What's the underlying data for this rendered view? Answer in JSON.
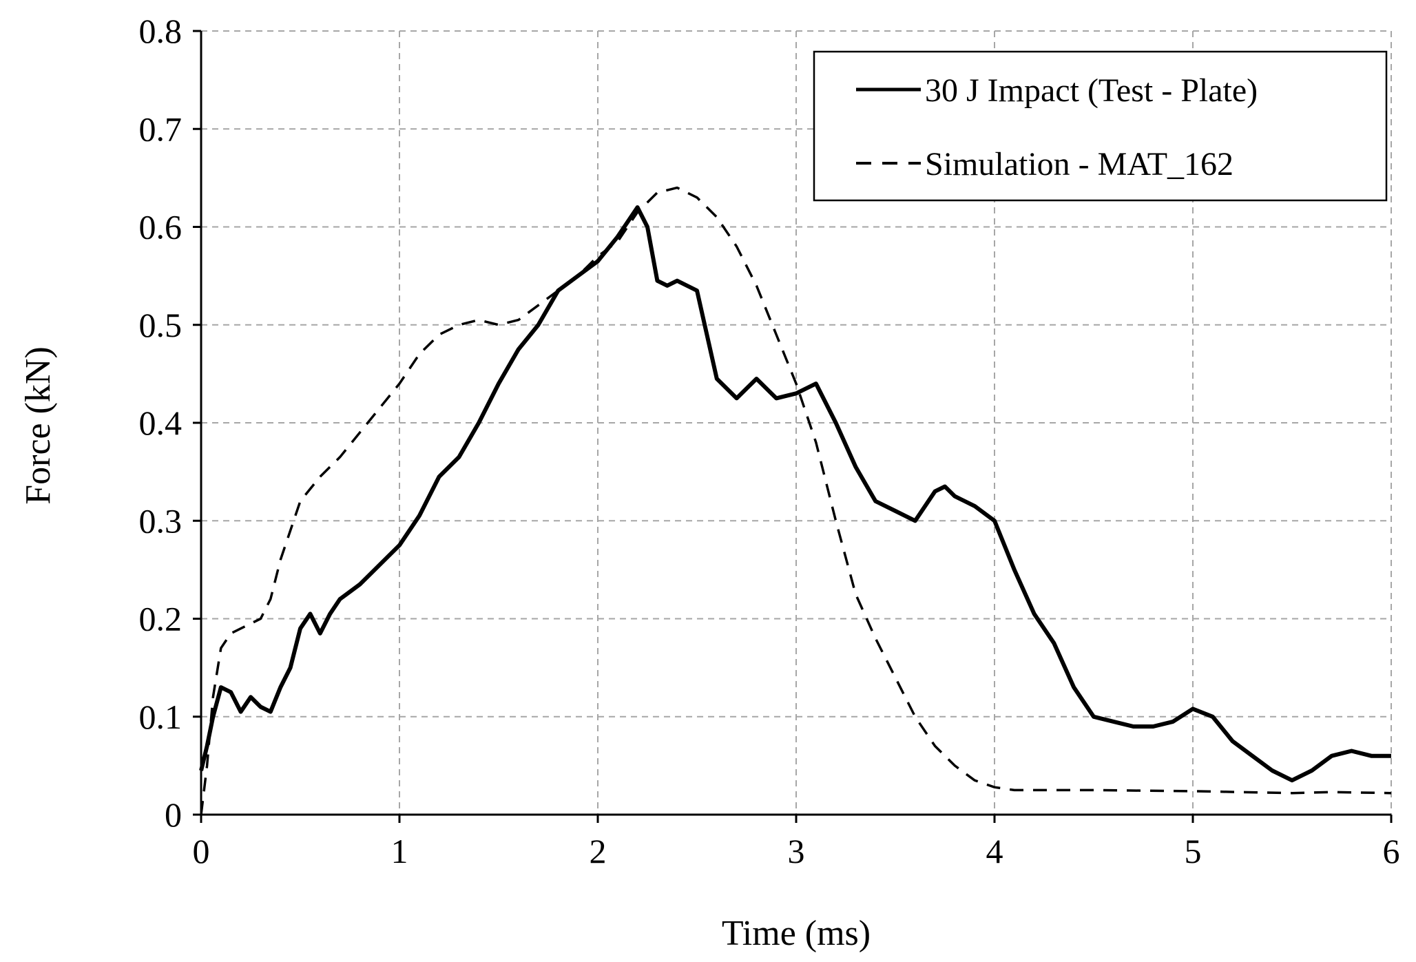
{
  "chart_data": {
    "type": "line",
    "title": "",
    "xlabel": "Time (ms)",
    "ylabel": "Force (kN)",
    "xlim": [
      0,
      6
    ],
    "ylim": [
      0,
      0.8
    ],
    "xticks": [
      0,
      1,
      2,
      3,
      4,
      5,
      6
    ],
    "yticks": [
      0,
      0.1,
      0.2,
      0.3,
      0.4,
      0.5,
      0.6,
      0.7,
      0.8
    ],
    "xtick_labels": [
      "0",
      "1",
      "2",
      "3",
      "4",
      "5",
      "6"
    ],
    "ytick_labels": [
      "0",
      "0.1",
      "0.2",
      "0.3",
      "0.4",
      "0.5",
      "0.6",
      "0.7",
      "0.8"
    ],
    "grid": true,
    "legend_position": "top-right",
    "series": [
      {
        "name": "30 J Impact (Test - Plate)",
        "style": "solid",
        "color": "#000000",
        "x": [
          0,
          0.03,
          0.06,
          0.1,
          0.15,
          0.2,
          0.25,
          0.3,
          0.35,
          0.4,
          0.45,
          0.5,
          0.55,
          0.6,
          0.65,
          0.7,
          0.8,
          0.9,
          1.0,
          1.1,
          1.2,
          1.3,
          1.4,
          1.5,
          1.6,
          1.7,
          1.8,
          1.9,
          2.0,
          2.1,
          2.15,
          2.2,
          2.25,
          2.3,
          2.35,
          2.4,
          2.5,
          2.55,
          2.6,
          2.7,
          2.8,
          2.9,
          3.0,
          3.1,
          3.2,
          3.3,
          3.4,
          3.5,
          3.6,
          3.7,
          3.75,
          3.8,
          3.9,
          4.0,
          4.1,
          4.2,
          4.3,
          4.4,
          4.5,
          4.6,
          4.7,
          4.8,
          4.9,
          5.0,
          5.1,
          5.2,
          5.3,
          5.4,
          5.5,
          5.6,
          5.7,
          5.8,
          5.9,
          6.0
        ],
        "y": [
          0.045,
          0.07,
          0.1,
          0.13,
          0.125,
          0.105,
          0.12,
          0.11,
          0.105,
          0.13,
          0.15,
          0.19,
          0.205,
          0.185,
          0.205,
          0.22,
          0.235,
          0.255,
          0.275,
          0.305,
          0.345,
          0.365,
          0.4,
          0.44,
          0.475,
          0.5,
          0.535,
          0.55,
          0.565,
          0.59,
          0.605,
          0.62,
          0.6,
          0.545,
          0.54,
          0.545,
          0.535,
          0.49,
          0.445,
          0.425,
          0.445,
          0.425,
          0.43,
          0.44,
          0.4,
          0.355,
          0.32,
          0.31,
          0.3,
          0.33,
          0.335,
          0.325,
          0.315,
          0.3,
          0.25,
          0.205,
          0.175,
          0.13,
          0.1,
          0.095,
          0.09,
          0.09,
          0.095,
          0.108,
          0.1,
          0.075,
          0.06,
          0.045,
          0.035,
          0.045,
          0.06,
          0.065,
          0.06,
          0.06
        ]
      },
      {
        "name": "Simulation - MAT_162",
        "style": "dashed",
        "color": "#000000",
        "x": [
          0,
          0.03,
          0.06,
          0.1,
          0.15,
          0.2,
          0.3,
          0.35,
          0.4,
          0.5,
          0.6,
          0.7,
          0.8,
          0.9,
          1.0,
          1.1,
          1.2,
          1.3,
          1.4,
          1.5,
          1.6,
          1.7,
          1.8,
          1.9,
          2.0,
          2.1,
          2.2,
          2.3,
          2.4,
          2.5,
          2.6,
          2.7,
          2.8,
          2.9,
          3.0,
          3.1,
          3.2,
          3.3,
          3.4,
          3.5,
          3.6,
          3.7,
          3.8,
          3.9,
          4.0,
          4.1,
          4.2,
          4.5,
          5.0,
          5.5,
          5.7,
          6.0
        ],
        "y": [
          0.0,
          0.05,
          0.12,
          0.17,
          0.185,
          0.19,
          0.2,
          0.22,
          0.26,
          0.32,
          0.345,
          0.365,
          0.39,
          0.415,
          0.44,
          0.47,
          0.49,
          0.5,
          0.505,
          0.5,
          0.505,
          0.52,
          0.535,
          0.55,
          0.57,
          0.585,
          0.615,
          0.635,
          0.64,
          0.63,
          0.61,
          0.58,
          0.54,
          0.49,
          0.44,
          0.38,
          0.3,
          0.225,
          0.18,
          0.14,
          0.1,
          0.07,
          0.05,
          0.035,
          0.028,
          0.025,
          0.025,
          0.025,
          0.024,
          0.022,
          0.023,
          0.022
        ]
      }
    ]
  }
}
